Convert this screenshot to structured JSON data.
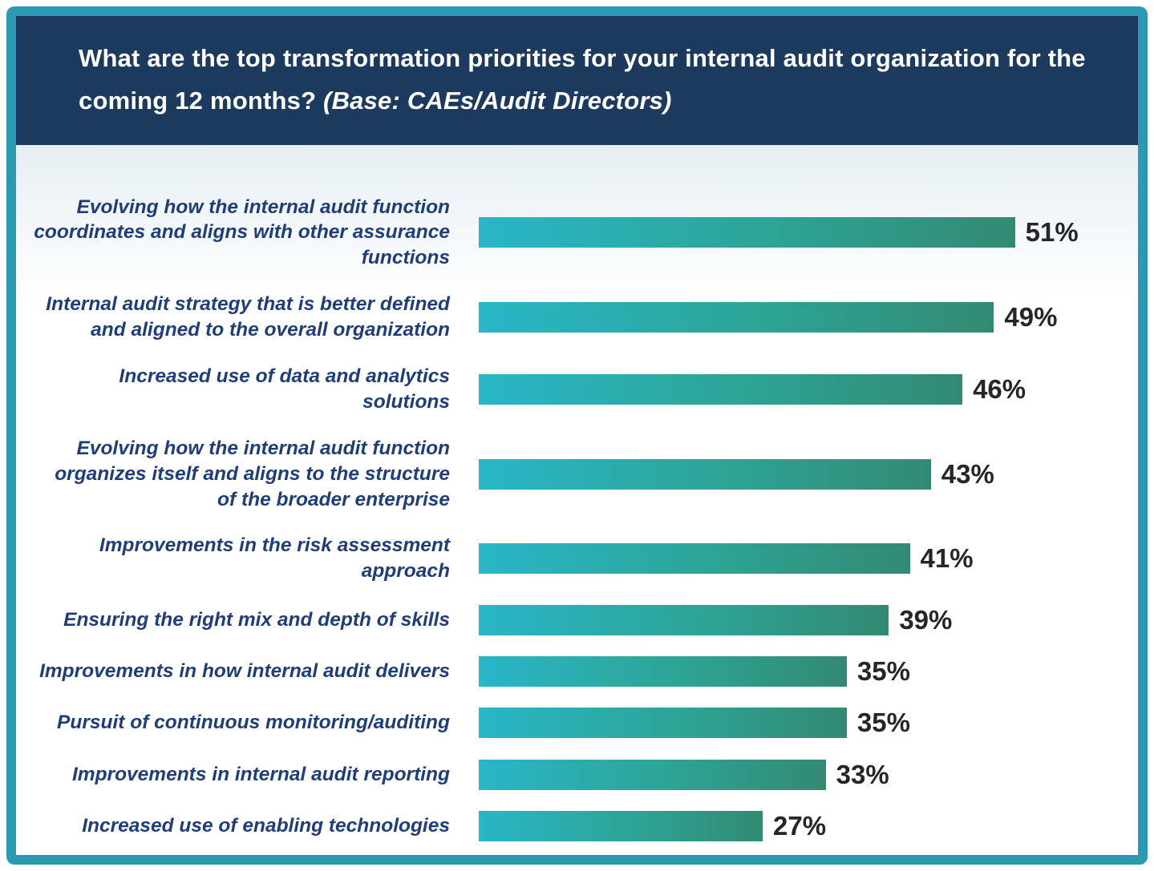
{
  "header": {
    "title_main": "What are the top transformation priorities for your internal audit organization for the coming 12 months?",
    "title_base": "(Base: CAEs/Audit Directors)"
  },
  "chart_data": {
    "type": "bar",
    "orientation": "horizontal",
    "title": "What are the top transformation priorities for your internal audit organization for the coming 12 months? (Base: CAEs/Audit Directors)",
    "categories": [
      "Evolving how the internal audit function coordinates and aligns with other assurance functions",
      "Internal audit strategy that is better defined and aligned to the overall organization",
      "Increased use of data and analytics solutions",
      "Evolving how the internal audit function organizes itself and aligns to the structure of the broader enterprise",
      "Improvements in the risk assessment approach",
      "Ensuring the right mix and depth of skills",
      "Improvements in how internal audit delivers",
      "Pursuit of continuous monitoring/auditing",
      "Improvements in internal audit reporting",
      "Increased use of enabling technologies"
    ],
    "values": [
      51,
      49,
      46,
      43,
      41,
      39,
      35,
      35,
      33,
      27
    ],
    "value_suffix": "%",
    "xlim": [
      0,
      51
    ],
    "bar_max_percent": 84,
    "grid": false,
    "legend": false,
    "colors": {
      "border": "#2a9ab2",
      "header_bg": "#1c3a5e",
      "header_text": "#ffffff",
      "label_text": "#1f3d78",
      "value_text": "#262626",
      "bar_gradient_start": "#29b6c8",
      "bar_gradient_end": "#338a73"
    }
  }
}
